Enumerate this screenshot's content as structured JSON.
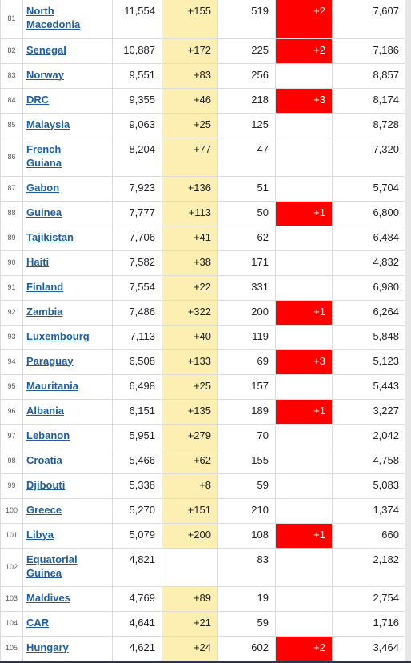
{
  "rows": [
    {
      "rank": "81",
      "country": [
        "North",
        "Macedonia"
      ],
      "total_cases": "11,554",
      "new_cases": "+155",
      "total_deaths": "519",
      "new_deaths": "+2",
      "total_recovered": "7,607"
    },
    {
      "rank": "82",
      "country": [
        "Senegal"
      ],
      "total_cases": "10,887",
      "new_cases": "+172",
      "total_deaths": "225",
      "new_deaths": "+2",
      "total_recovered": "7,186"
    },
    {
      "rank": "83",
      "country": [
        "Norway"
      ],
      "total_cases": "9,551",
      "new_cases": "+83",
      "total_deaths": "256",
      "new_deaths": "",
      "total_recovered": "8,857"
    },
    {
      "rank": "84",
      "country": [
        "DRC"
      ],
      "total_cases": "9,355",
      "new_cases": "+46",
      "total_deaths": "218",
      "new_deaths": "+3",
      "total_recovered": "8,174"
    },
    {
      "rank": "85",
      "country": [
        "Malaysia"
      ],
      "total_cases": "9,063",
      "new_cases": "+25",
      "total_deaths": "125",
      "new_deaths": "",
      "total_recovered": "8,728"
    },
    {
      "rank": "86",
      "country": [
        "French",
        "Guiana"
      ],
      "total_cases": "8,204",
      "new_cases": "+77",
      "total_deaths": "47",
      "new_deaths": "",
      "total_recovered": "7,320"
    },
    {
      "rank": "87",
      "country": [
        "Gabon"
      ],
      "total_cases": "7,923",
      "new_cases": "+136",
      "total_deaths": "51",
      "new_deaths": "",
      "total_recovered": "5,704"
    },
    {
      "rank": "88",
      "country": [
        "Guinea"
      ],
      "total_cases": "7,777",
      "new_cases": "+113",
      "total_deaths": "50",
      "new_deaths": "+1",
      "total_recovered": "6,800"
    },
    {
      "rank": "89",
      "country": [
        "Tajikistan"
      ],
      "total_cases": "7,706",
      "new_cases": "+41",
      "total_deaths": "62",
      "new_deaths": "",
      "total_recovered": "6,484"
    },
    {
      "rank": "90",
      "country": [
        "Haiti"
      ],
      "total_cases": "7,582",
      "new_cases": "+38",
      "total_deaths": "171",
      "new_deaths": "",
      "total_recovered": "4,832"
    },
    {
      "rank": "91",
      "country": [
        "Finland"
      ],
      "total_cases": "7,554",
      "new_cases": "+22",
      "total_deaths": "331",
      "new_deaths": "",
      "total_recovered": "6,980"
    },
    {
      "rank": "92",
      "country": [
        "Zambia"
      ],
      "total_cases": "7,486",
      "new_cases": "+322",
      "total_deaths": "200",
      "new_deaths": "+1",
      "total_recovered": "6,264"
    },
    {
      "rank": "93",
      "country": [
        "Luxembourg"
      ],
      "total_cases": "7,113",
      "new_cases": "+40",
      "total_deaths": "119",
      "new_deaths": "",
      "total_recovered": "5,848"
    },
    {
      "rank": "94",
      "country": [
        "Paraguay"
      ],
      "total_cases": "6,508",
      "new_cases": "+133",
      "total_deaths": "69",
      "new_deaths": "+3",
      "total_recovered": "5,123"
    },
    {
      "rank": "95",
      "country": [
        "Mauritania"
      ],
      "total_cases": "6,498",
      "new_cases": "+25",
      "total_deaths": "157",
      "new_deaths": "",
      "total_recovered": "5,443"
    },
    {
      "rank": "96",
      "country": [
        "Albania"
      ],
      "total_cases": "6,151",
      "new_cases": "+135",
      "total_deaths": "189",
      "new_deaths": "+1",
      "total_recovered": "3,227"
    },
    {
      "rank": "97",
      "country": [
        "Lebanon"
      ],
      "total_cases": "5,951",
      "new_cases": "+279",
      "total_deaths": "70",
      "new_deaths": "",
      "total_recovered": "2,042"
    },
    {
      "rank": "98",
      "country": [
        "Croatia"
      ],
      "total_cases": "5,466",
      "new_cases": "+62",
      "total_deaths": "155",
      "new_deaths": "",
      "total_recovered": "4,758"
    },
    {
      "rank": "99",
      "country": [
        "Djibouti"
      ],
      "total_cases": "5,338",
      "new_cases": "+8",
      "total_deaths": "59",
      "new_deaths": "",
      "total_recovered": "5,083"
    },
    {
      "rank": "100",
      "country": [
        "Greece"
      ],
      "total_cases": "5,270",
      "new_cases": "+151",
      "total_deaths": "210",
      "new_deaths": "",
      "total_recovered": "1,374"
    },
    {
      "rank": "101",
      "country": [
        "Libya"
      ],
      "total_cases": "5,079",
      "new_cases": "+200",
      "total_deaths": "108",
      "new_deaths": "+1",
      "total_recovered": "660"
    },
    {
      "rank": "102",
      "country": [
        "Equatorial",
        "Guinea"
      ],
      "total_cases": "4,821",
      "new_cases": "",
      "total_deaths": "83",
      "new_deaths": "",
      "total_recovered": "2,182"
    },
    {
      "rank": "103",
      "country": [
        "Maldives"
      ],
      "total_cases": "4,769",
      "new_cases": "+89",
      "total_deaths": "19",
      "new_deaths": "",
      "total_recovered": "2,754"
    },
    {
      "rank": "104",
      "country": [
        "CAR"
      ],
      "total_cases": "4,641",
      "new_cases": "+21",
      "total_deaths": "59",
      "new_deaths": "",
      "total_recovered": "1,716"
    },
    {
      "rank": "105",
      "country": [
        "Hungary"
      ],
      "total_cases": "4,621",
      "new_cases": "+24",
      "total_deaths": "602",
      "new_deaths": "+2",
      "total_recovered": "3,464"
    }
  ],
  "colors": {
    "link": "#1f5e9c",
    "new_cases_bg": "#fdeeb2",
    "new_deaths_bg": "#ff0000",
    "grid": "#dcdcdc"
  }
}
